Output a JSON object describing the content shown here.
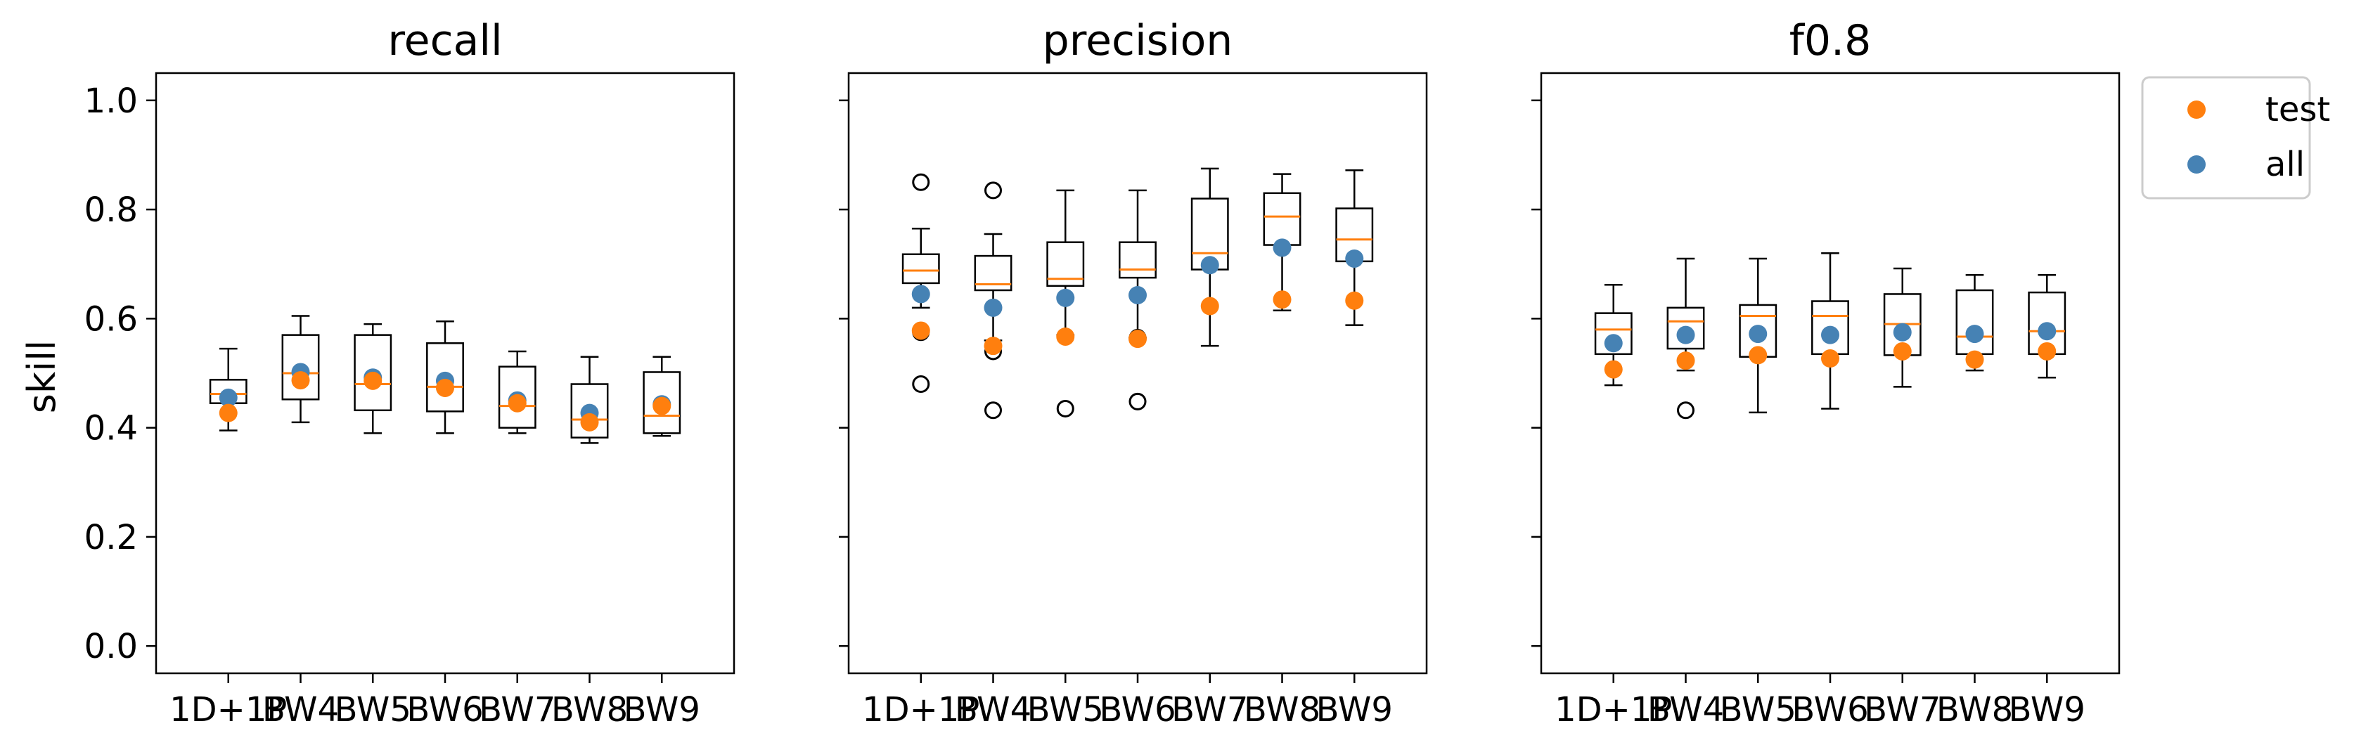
{
  "chart_data": {
    "type": "box",
    "ylabel": "skill",
    "ylim": [
      -0.05,
      1.05
    ],
    "yticks": [
      "0.0",
      "0.2",
      "0.4",
      "0.6",
      "0.8",
      "1.0"
    ],
    "categories": [
      "1D+1P",
      "BW4",
      "BW5",
      "BW6",
      "BW7",
      "BW8",
      "BW9"
    ],
    "legend": {
      "placement": "upper-right-outside",
      "entries": [
        {
          "name": "test",
          "color": "#ff7f0e"
        },
        {
          "name": "all",
          "color": "#4682b4"
        }
      ]
    },
    "colors": {
      "median": "#ff7f0e",
      "test": "#ff7f0e",
      "all": "#4682b4",
      "box": "#000000"
    },
    "panels": [
      {
        "title": "recall",
        "boxes": [
          {
            "whislo": 0.395,
            "q1": 0.445,
            "med": 0.462,
            "q3": 0.488,
            "whishi": 0.545,
            "fliers": []
          },
          {
            "whislo": 0.41,
            "q1": 0.452,
            "med": 0.5,
            "q3": 0.57,
            "whishi": 0.605,
            "fliers": []
          },
          {
            "whislo": 0.39,
            "q1": 0.432,
            "med": 0.48,
            "q3": 0.57,
            "whishi": 0.59,
            "fliers": []
          },
          {
            "whislo": 0.39,
            "q1": 0.43,
            "med": 0.475,
            "q3": 0.555,
            "whishi": 0.595,
            "fliers": []
          },
          {
            "whislo": 0.39,
            "q1": 0.4,
            "med": 0.44,
            "q3": 0.512,
            "whishi": 0.54,
            "fliers": []
          },
          {
            "whislo": 0.372,
            "q1": 0.382,
            "med": 0.415,
            "q3": 0.48,
            "whishi": 0.53,
            "fliers": []
          },
          {
            "whislo": 0.385,
            "q1": 0.39,
            "med": 0.422,
            "q3": 0.502,
            "whishi": 0.53,
            "fliers": []
          }
        ],
        "test": [
          0.427,
          0.487,
          0.486,
          0.473,
          0.445,
          0.41,
          0.44
        ],
        "all": [
          0.455,
          0.502,
          0.492,
          0.486,
          0.45,
          0.427,
          0.443
        ]
      },
      {
        "title": "precision",
        "boxes": [
          {
            "whislo": 0.62,
            "q1": 0.665,
            "med": 0.688,
            "q3": 0.718,
            "whishi": 0.765,
            "fliers": [
              0.85,
              0.575,
              0.48
            ]
          },
          {
            "whislo": 0.56,
            "q1": 0.652,
            "med": 0.663,
            "q3": 0.715,
            "whishi": 0.755,
            "fliers": [
              0.835,
              0.54,
              0.432
            ]
          },
          {
            "whislo": 0.57,
            "q1": 0.66,
            "med": 0.673,
            "q3": 0.74,
            "whishi": 0.835,
            "fliers": [
              0.435
            ]
          },
          {
            "whislo": 0.565,
            "q1": 0.675,
            "med": 0.69,
            "q3": 0.74,
            "whishi": 0.835,
            "fliers": [
              0.565,
              0.448
            ]
          },
          {
            "whislo": 0.55,
            "q1": 0.69,
            "med": 0.72,
            "q3": 0.82,
            "whishi": 0.875,
            "fliers": []
          },
          {
            "whislo": 0.615,
            "q1": 0.735,
            "med": 0.787,
            "q3": 0.83,
            "whishi": 0.865,
            "fliers": []
          },
          {
            "whislo": 0.588,
            "q1": 0.705,
            "med": 0.745,
            "q3": 0.802,
            "whishi": 0.872,
            "fliers": []
          }
        ],
        "test": [
          0.578,
          0.55,
          0.567,
          0.563,
          0.623,
          0.635,
          0.633
        ],
        "all": [
          0.645,
          0.62,
          0.638,
          0.643,
          0.698,
          0.73,
          0.71
        ]
      },
      {
        "title": "f0.8",
        "boxes": [
          {
            "whislo": 0.478,
            "q1": 0.535,
            "med": 0.58,
            "q3": 0.61,
            "whishi": 0.662,
            "fliers": []
          },
          {
            "whislo": 0.505,
            "q1": 0.545,
            "med": 0.595,
            "q3": 0.62,
            "whishi": 0.71,
            "fliers": [
              0.432
            ]
          },
          {
            "whislo": 0.428,
            "q1": 0.53,
            "med": 0.605,
            "q3": 0.625,
            "whishi": 0.71,
            "fliers": []
          },
          {
            "whislo": 0.435,
            "q1": 0.535,
            "med": 0.605,
            "q3": 0.632,
            "whishi": 0.72,
            "fliers": []
          },
          {
            "whislo": 0.475,
            "q1": 0.533,
            "med": 0.59,
            "q3": 0.645,
            "whishi": 0.692,
            "fliers": []
          },
          {
            "whislo": 0.505,
            "q1": 0.535,
            "med": 0.567,
            "q3": 0.652,
            "whishi": 0.68,
            "fliers": []
          },
          {
            "whislo": 0.492,
            "q1": 0.535,
            "med": 0.577,
            "q3": 0.648,
            "whishi": 0.68,
            "fliers": []
          }
        ],
        "test": [
          0.507,
          0.523,
          0.533,
          0.527,
          0.54,
          0.525,
          0.54
        ],
        "all": [
          0.555,
          0.57,
          0.572,
          0.57,
          0.575,
          0.572,
          0.577
        ]
      }
    ]
  }
}
